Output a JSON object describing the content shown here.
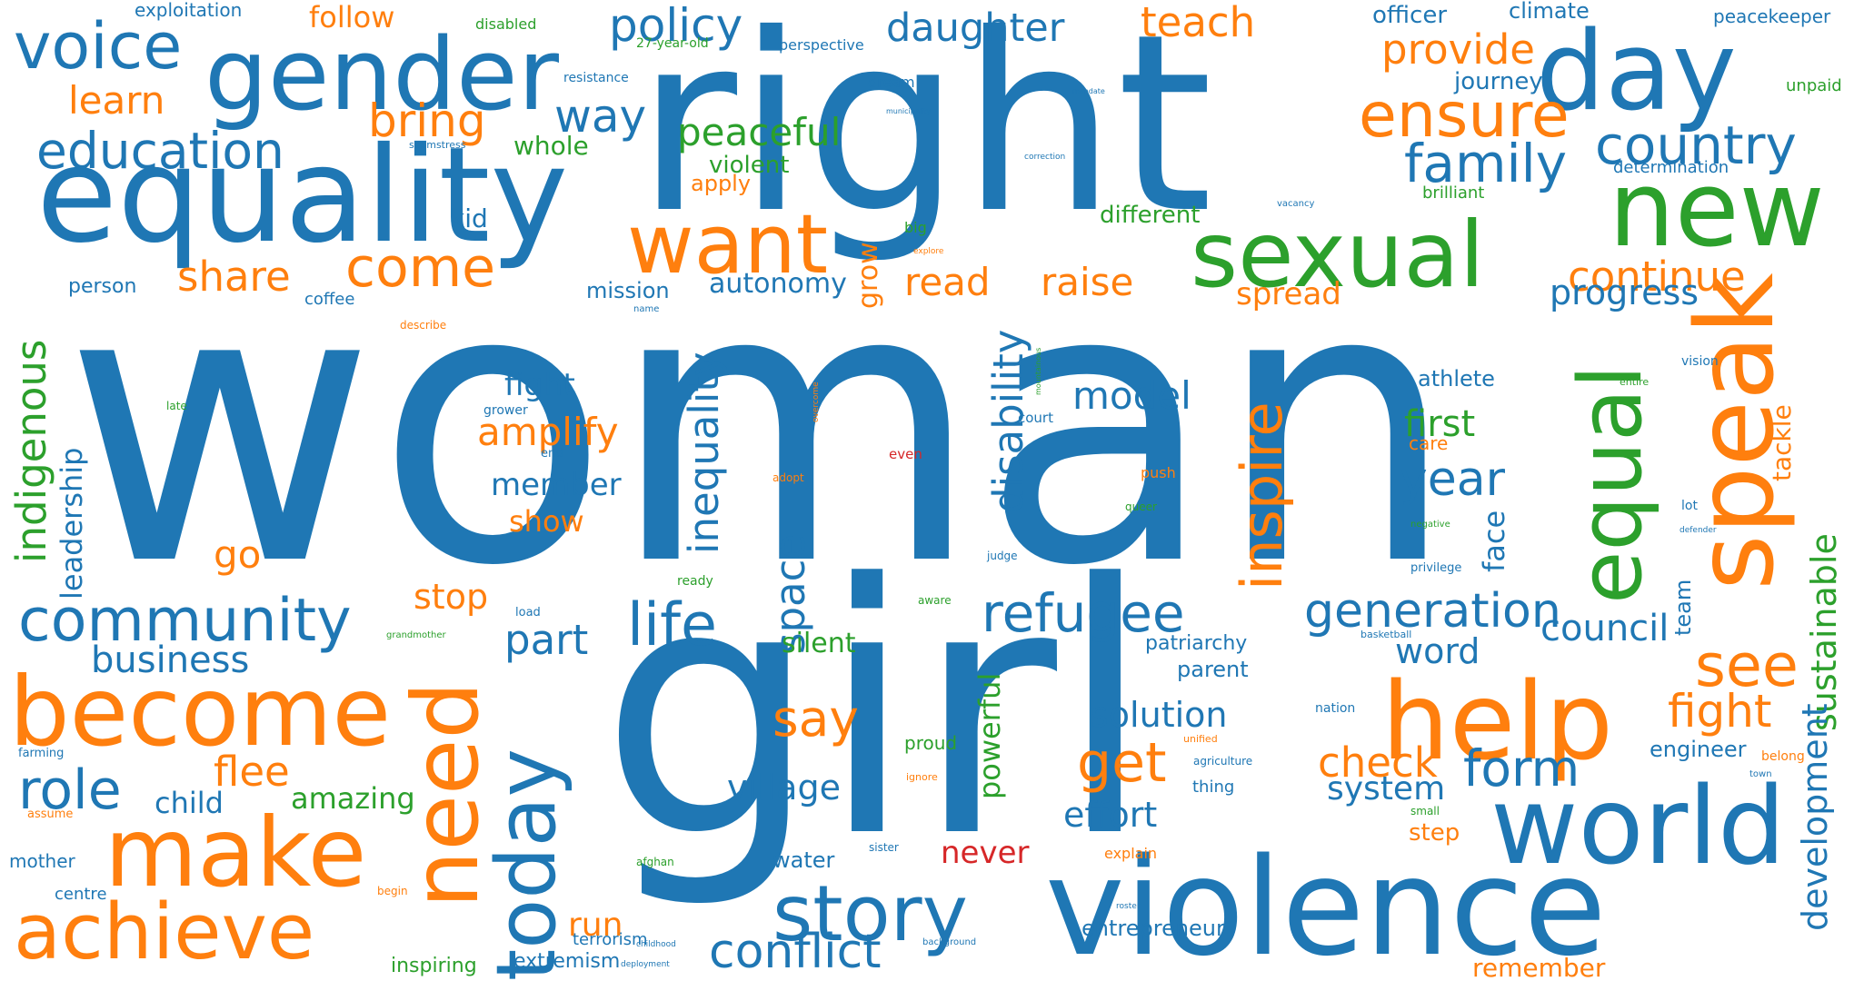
{
  "palette": {
    "blue": "#1f77b4",
    "orange": "#ff7f0e",
    "green": "#2ca02c",
    "red": "#d62728"
  },
  "words": [
    {
      "text": "woman",
      "color": "blue"
    },
    {
      "text": "girl",
      "color": "blue"
    },
    {
      "text": "right",
      "color": "blue"
    },
    {
      "text": "equality",
      "color": "blue"
    },
    {
      "text": "gender",
      "color": "blue"
    },
    {
      "text": "day",
      "color": "blue"
    },
    {
      "text": "violence",
      "color": "blue"
    },
    {
      "text": "new",
      "color": "green"
    },
    {
      "text": "sexual",
      "color": "green"
    },
    {
      "text": "help",
      "color": "orange"
    },
    {
      "text": "speak",
      "color": "orange"
    },
    {
      "text": "world",
      "color": "blue"
    },
    {
      "text": "become",
      "color": "orange"
    },
    {
      "text": "need",
      "color": "orange"
    },
    {
      "text": "make",
      "color": "orange"
    },
    {
      "text": "today",
      "color": "blue"
    },
    {
      "text": "want",
      "color": "orange"
    },
    {
      "text": "equal",
      "color": "green"
    },
    {
      "text": "story",
      "color": "blue"
    },
    {
      "text": "achieve",
      "color": "orange"
    },
    {
      "text": "voice",
      "color": "blue"
    },
    {
      "text": "education",
      "color": "blue"
    },
    {
      "text": "community",
      "color": "blue"
    },
    {
      "text": "life",
      "color": "blue"
    },
    {
      "text": "refugee",
      "color": "blue"
    },
    {
      "text": "ensure",
      "color": "orange"
    },
    {
      "text": "country",
      "color": "blue"
    },
    {
      "text": "family",
      "color": "blue"
    },
    {
      "text": "inspire",
      "color": "orange"
    },
    {
      "text": "generation",
      "color": "blue"
    },
    {
      "text": "see",
      "color": "orange"
    },
    {
      "text": "get",
      "color": "orange"
    },
    {
      "text": "form",
      "color": "blue"
    },
    {
      "text": "role",
      "color": "blue"
    },
    {
      "text": "conflict",
      "color": "blue"
    },
    {
      "text": "come",
      "color": "orange"
    },
    {
      "text": "policy",
      "color": "blue"
    },
    {
      "text": "daughter",
      "color": "blue"
    },
    {
      "text": "teach",
      "color": "orange"
    },
    {
      "text": "provide",
      "color": "orange"
    },
    {
      "text": "continue",
      "color": "orange"
    },
    {
      "text": "indigenous",
      "color": "green"
    },
    {
      "text": "say",
      "color": "orange"
    },
    {
      "text": "year",
      "color": "blue"
    },
    {
      "text": "fight",
      "color": "orange"
    },
    {
      "text": "way",
      "color": "blue"
    },
    {
      "text": "bring",
      "color": "orange"
    },
    {
      "text": "peaceful",
      "color": "green"
    },
    {
      "text": "share",
      "color": "orange"
    },
    {
      "text": "part",
      "color": "blue"
    },
    {
      "text": "space",
      "color": "blue"
    },
    {
      "text": "disability",
      "color": "blue"
    },
    {
      "text": "inequality",
      "color": "blue"
    },
    {
      "text": "read",
      "color": "orange"
    },
    {
      "text": "raise",
      "color": "orange"
    },
    {
      "text": "model",
      "color": "blue"
    },
    {
      "text": "check",
      "color": "orange"
    },
    {
      "text": "council",
      "color": "blue"
    },
    {
      "text": "progress",
      "color": "blue"
    },
    {
      "text": "sustainable",
      "color": "green"
    },
    {
      "text": "development",
      "color": "blue"
    },
    {
      "text": "flee",
      "color": "orange"
    },
    {
      "text": "business",
      "color": "blue"
    },
    {
      "text": "learn",
      "color": "orange"
    },
    {
      "text": "amplify",
      "color": "orange"
    },
    {
      "text": "first",
      "color": "green"
    },
    {
      "text": "village",
      "color": "blue"
    },
    {
      "text": "solution",
      "color": "blue"
    },
    {
      "text": "effort",
      "color": "blue"
    },
    {
      "text": "system",
      "color": "blue"
    },
    {
      "text": "word",
      "color": "blue"
    },
    {
      "text": "fight",
      "color": "blue"
    },
    {
      "text": "member",
      "color": "blue"
    },
    {
      "text": "grow",
      "color": "orange"
    },
    {
      "text": "go",
      "color": "orange"
    },
    {
      "text": "leadership",
      "color": "blue"
    },
    {
      "text": "autonomy",
      "color": "blue"
    },
    {
      "text": "face",
      "color": "blue"
    },
    {
      "text": "stop",
      "color": "orange"
    },
    {
      "text": "child",
      "color": "blue"
    },
    {
      "text": "amazing",
      "color": "green"
    },
    {
      "text": "never",
      "color": "red"
    },
    {
      "text": "show",
      "color": "orange"
    },
    {
      "text": "whole",
      "color": "green"
    },
    {
      "text": "different",
      "color": "green"
    },
    {
      "text": "kid",
      "color": "blue"
    },
    {
      "text": "follow",
      "color": "orange"
    },
    {
      "text": "powerful",
      "color": "green"
    },
    {
      "text": "spread",
      "color": "orange"
    },
    {
      "text": "silent",
      "color": "green"
    },
    {
      "text": "run",
      "color": "orange"
    },
    {
      "text": "tackle",
      "color": "orange"
    },
    {
      "text": "team",
      "color": "blue"
    },
    {
      "text": "violent",
      "color": "green"
    },
    {
      "text": "officer",
      "color": "blue"
    },
    {
      "text": "journey",
      "color": "blue"
    },
    {
      "text": "climate",
      "color": "blue"
    },
    {
      "text": "athlete",
      "color": "blue"
    },
    {
      "text": "engineer",
      "color": "blue"
    },
    {
      "text": "parent",
      "color": "blue"
    },
    {
      "text": "patriarchy",
      "color": "blue"
    },
    {
      "text": "remember",
      "color": "orange"
    },
    {
      "text": "entrepreneur",
      "color": "blue"
    },
    {
      "text": "mission",
      "color": "blue"
    },
    {
      "text": "person",
      "color": "blue"
    },
    {
      "text": "apply",
      "color": "orange"
    },
    {
      "text": "extremism",
      "color": "blue"
    },
    {
      "text": "water",
      "color": "blue"
    },
    {
      "text": "inspiring",
      "color": "green"
    },
    {
      "text": "mother",
      "color": "blue"
    },
    {
      "text": "proud",
      "color": "green"
    },
    {
      "text": "step",
      "color": "orange"
    },
    {
      "text": "exploitation",
      "color": "blue"
    },
    {
      "text": "peacekeeper",
      "color": "blue"
    },
    {
      "text": "unpaid",
      "color": "green"
    },
    {
      "text": "determination",
      "color": "blue"
    },
    {
      "text": "brilliant",
      "color": "green"
    },
    {
      "text": "coffee",
      "color": "blue"
    },
    {
      "text": "care",
      "color": "orange"
    },
    {
      "text": "centre",
      "color": "blue"
    },
    {
      "text": "terrorism",
      "color": "blue"
    },
    {
      "text": "disabled",
      "color": "green"
    },
    {
      "text": "thing",
      "color": "blue"
    },
    {
      "text": "explain",
      "color": "orange"
    },
    {
      "text": "dream",
      "color": "blue"
    },
    {
      "text": "perspective",
      "color": "blue"
    },
    {
      "text": "big",
      "color": "green"
    },
    {
      "text": "court",
      "color": "blue"
    },
    {
      "text": "push",
      "color": "orange"
    },
    {
      "text": "belong",
      "color": "orange"
    },
    {
      "text": "lot",
      "color": "blue"
    },
    {
      "text": "27-year-old",
      "color": "green"
    },
    {
      "text": "resistance",
      "color": "blue"
    },
    {
      "text": "vision",
      "color": "blue"
    },
    {
      "text": "nation",
      "color": "blue"
    },
    {
      "text": "grower",
      "color": "blue"
    },
    {
      "text": "privilege",
      "color": "blue"
    },
    {
      "text": "end",
      "color": "blue"
    },
    {
      "text": "even",
      "color": "red"
    },
    {
      "text": "ready",
      "color": "green"
    },
    {
      "text": "load",
      "color": "blue"
    },
    {
      "text": "farming",
      "color": "blue"
    },
    {
      "text": "assume",
      "color": "orange"
    },
    {
      "text": "describe",
      "color": "orange"
    },
    {
      "text": "adopt",
      "color": "orange"
    },
    {
      "text": "aware",
      "color": "green"
    },
    {
      "text": "judge",
      "color": "blue"
    },
    {
      "text": "begin",
      "color": "orange"
    },
    {
      "text": "sister",
      "color": "blue"
    },
    {
      "text": "ignore",
      "color": "orange"
    },
    {
      "text": "small",
      "color": "green"
    },
    {
      "text": "agriculture",
      "color": "blue"
    },
    {
      "text": "unified",
      "color": "orange"
    },
    {
      "text": "queer",
      "color": "green"
    },
    {
      "text": "late",
      "color": "green"
    },
    {
      "text": "entire",
      "color": "green"
    },
    {
      "text": "town",
      "color": "blue"
    },
    {
      "text": "afghan",
      "color": "green"
    },
    {
      "text": "negative",
      "color": "green"
    },
    {
      "text": "basketball",
      "color": "blue"
    },
    {
      "text": "defender",
      "color": "blue"
    },
    {
      "text": "grandmother",
      "color": "green"
    },
    {
      "text": "name",
      "color": "blue"
    },
    {
      "text": "vacancy",
      "color": "blue"
    },
    {
      "text": "seamstress",
      "color": "blue"
    },
    {
      "text": "correction",
      "color": "blue"
    },
    {
      "text": "municipality",
      "color": "blue"
    },
    {
      "text": "mandate",
      "color": "blue"
    },
    {
      "text": "explore",
      "color": "orange"
    },
    {
      "text": "overcome",
      "color": "orange"
    },
    {
      "text": "mountainous",
      "color": "green"
    },
    {
      "text": "roster",
      "color": "blue"
    },
    {
      "text": "childhood",
      "color": "blue"
    },
    {
      "text": "background",
      "color": "blue"
    },
    {
      "text": "deployment",
      "color": "blue"
    }
  ]
}
